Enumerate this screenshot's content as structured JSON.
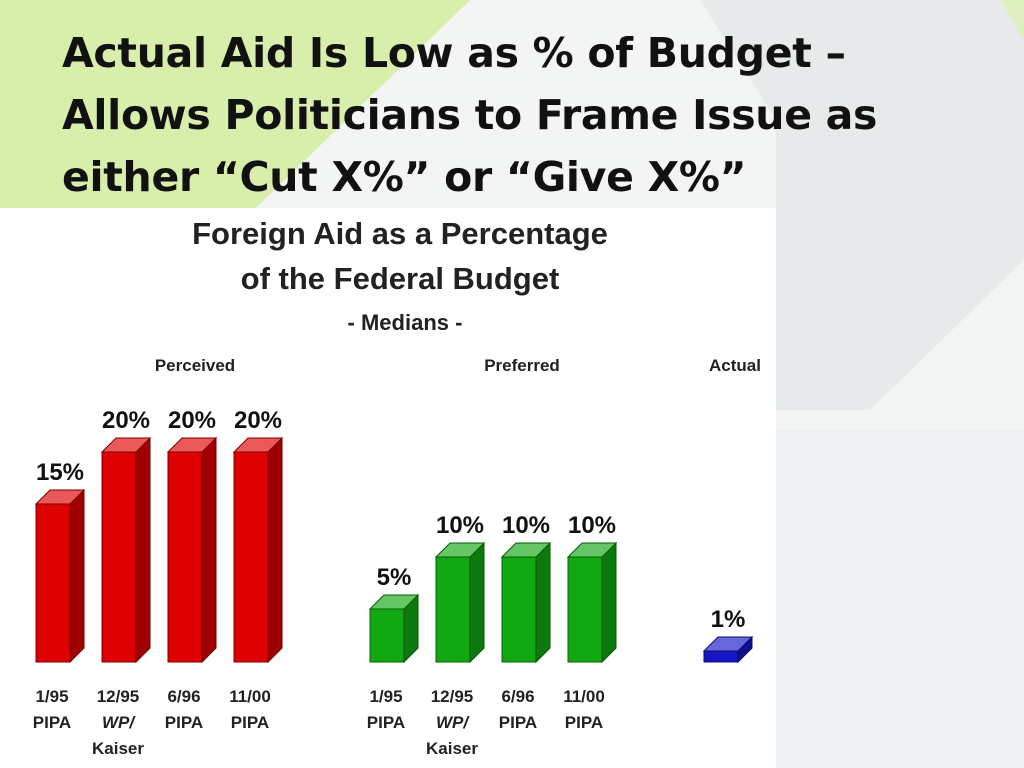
{
  "slide": {
    "title_lines": [
      "Actual Aid Is Low as % of Budget –",
      "Allows Politicians to Frame Issue as",
      "either “Cut X%” or “Give X%”"
    ]
  },
  "colors": {
    "perceived": "#e00000",
    "preferred": "#11a811",
    "actual": "#1515c8",
    "background_accent": "#c9e98f"
  },
  "chart_data": {
    "type": "bar",
    "title_lines": [
      "Foreign Aid as a Percentage",
      "of the Federal Budget"
    ],
    "subtitle": "- Medians -",
    "xlabel": "",
    "ylabel": "",
    "ylim": [
      0,
      20
    ],
    "grid": false,
    "legend": "none",
    "groups": [
      {
        "name": "Perceived",
        "color": "#e00000",
        "bars": [
          {
            "label": [
              "1/95",
              "PIPA"
            ],
            "value": 15,
            "value_label": "15%"
          },
          {
            "label": [
              "12/95",
              "WP/",
              "Kaiser"
            ],
            "value": 20,
            "value_label": "20%"
          },
          {
            "label": [
              "6/96",
              "PIPA"
            ],
            "value": 20,
            "value_label": "20%"
          },
          {
            "label": [
              "11/00",
              "PIPA"
            ],
            "value": 20,
            "value_label": "20%"
          }
        ]
      },
      {
        "name": "Preferred",
        "color": "#11a811",
        "bars": [
          {
            "label": [
              "1/95",
              "PIPA"
            ],
            "value": 5,
            "value_label": "5%"
          },
          {
            "label": [
              "12/95",
              "WP/",
              "Kaiser"
            ],
            "value": 10,
            "value_label": "10%"
          },
          {
            "label": [
              "6/96",
              "PIPA"
            ],
            "value": 10,
            "value_label": "10%"
          },
          {
            "label": [
              "11/00",
              "PIPA"
            ],
            "value": 10,
            "value_label": "10%"
          }
        ]
      },
      {
        "name": "Actual",
        "color": "#1515c8",
        "bars": [
          {
            "label": [],
            "value": 1,
            "value_label": "1%"
          }
        ]
      }
    ]
  }
}
